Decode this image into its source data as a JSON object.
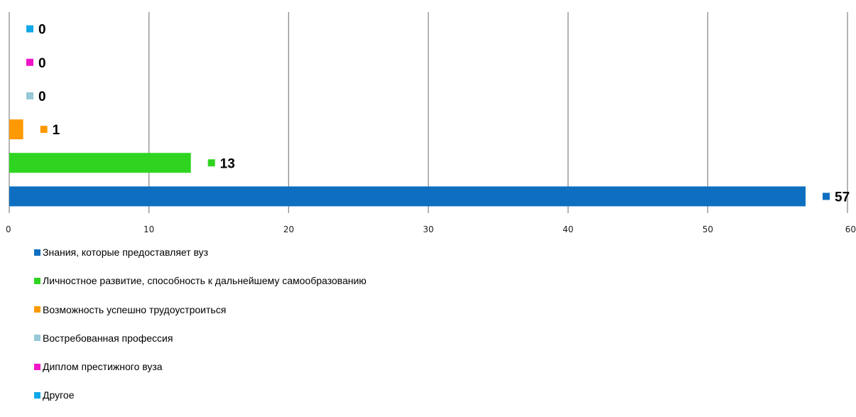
{
  "chart_data": {
    "type": "bar",
    "orientation": "horizontal",
    "title": "",
    "xlabel": "",
    "ylabel": "",
    "xlim": [
      0,
      60
    ],
    "x_ticks": [
      "0",
      "10",
      "20",
      "30",
      "40",
      "50",
      "60"
    ],
    "grid": "vertical",
    "legend_position": "bottom-left",
    "series": [
      {
        "name": "Знания, которые предоставляет вуз",
        "value": 57,
        "label": "57",
        "color": "#0e6fc0"
      },
      {
        "name": "Личностное развитие, способность к дальнейшему самообразованию",
        "value": 13,
        "label": "13",
        "color": "#2fd420"
      },
      {
        "name": "Возможность успешно трудоустроиться",
        "value": 1,
        "label": "1",
        "color": "#ff9a05"
      },
      {
        "name": "Востребованная профессия",
        "value": 0,
        "label": "0",
        "color": "#96c8d8"
      },
      {
        "name": "Диплом престижного вуза",
        "value": 0,
        "label": "0",
        "color": "#ef14c8"
      },
      {
        "name": "Другое",
        "value": 0,
        "label": "0",
        "color": "#12a8e8"
      }
    ]
  }
}
